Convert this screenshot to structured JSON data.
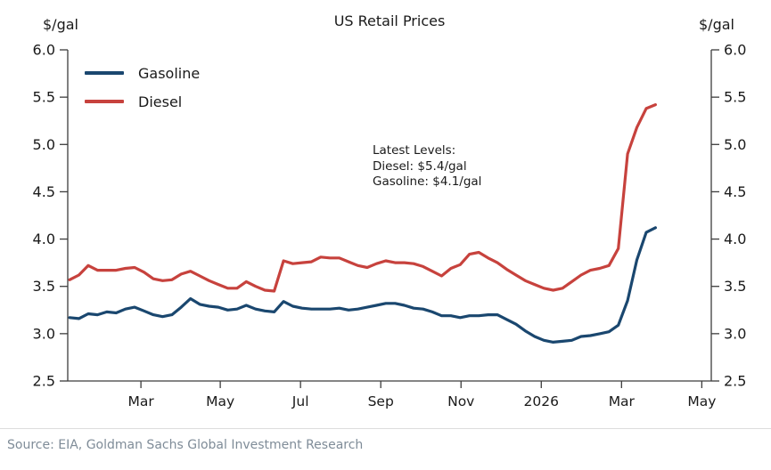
{
  "title": "US Retail Prices",
  "axis_units": {
    "left": "$/gal",
    "right": "$/gal"
  },
  "annotation": {
    "lines": [
      "Latest Levels:",
      "Diesel: $5.4/gal",
      "Gasoline: $4.1/gal"
    ]
  },
  "source": "Source: EIA, Goldman Sachs Global Investment Research",
  "chart_data": {
    "type": "line",
    "title": "US Retail Prices",
    "ylabel": "$/gal",
    "ylim": [
      2.5,
      6.0
    ],
    "yticks": [
      2.5,
      3.0,
      3.5,
      4.0,
      4.5,
      5.0,
      5.5,
      6.0
    ],
    "grid": false,
    "legend_position": "upper left",
    "x_description": "weekly observations, Jan 2025 through late Mar 2026",
    "x_domain": [
      -0.2,
      69.0
    ],
    "xticks": [
      {
        "x": 7.67,
        "label": "Mar"
      },
      {
        "x": 16.2,
        "label": "May"
      },
      {
        "x": 24.83,
        "label": "Jul"
      },
      {
        "x": 33.46,
        "label": "Sep"
      },
      {
        "x": 42.09,
        "label": "Nov"
      },
      {
        "x": 50.72,
        "label": "2026"
      },
      {
        "x": 59.35,
        "label": "Mar"
      },
      {
        "x": 67.98,
        "label": "May"
      }
    ],
    "series": [
      {
        "name": "Gasoline",
        "color": "#1a476f",
        "latest_label": "$4.1/gal",
        "values": [
          3.17,
          3.16,
          3.21,
          3.2,
          3.23,
          3.22,
          3.26,
          3.28,
          3.24,
          3.2,
          3.18,
          3.2,
          3.28,
          3.37,
          3.31,
          3.29,
          3.28,
          3.25,
          3.26,
          3.3,
          3.26,
          3.24,
          3.23,
          3.34,
          3.29,
          3.27,
          3.26,
          3.26,
          3.26,
          3.27,
          3.25,
          3.26,
          3.28,
          3.3,
          3.32,
          3.32,
          3.3,
          3.27,
          3.26,
          3.23,
          3.19,
          3.19,
          3.17,
          3.19,
          3.19,
          3.2,
          3.2,
          3.15,
          3.1,
          3.03,
          2.97,
          2.93,
          2.91,
          2.92,
          2.93,
          2.97,
          2.98,
          3.0,
          3.02,
          3.09,
          3.35,
          3.78,
          4.07,
          4.12
        ]
      },
      {
        "name": "Diesel",
        "color": "#c7423d",
        "latest_label": "$5.4/gal",
        "values": [
          3.57,
          3.62,
          3.72,
          3.67,
          3.67,
          3.67,
          3.69,
          3.7,
          3.65,
          3.58,
          3.56,
          3.57,
          3.63,
          3.66,
          3.61,
          3.56,
          3.52,
          3.48,
          3.48,
          3.55,
          3.5,
          3.46,
          3.45,
          3.77,
          3.74,
          3.75,
          3.76,
          3.81,
          3.8,
          3.8,
          3.76,
          3.72,
          3.7,
          3.74,
          3.77,
          3.75,
          3.75,
          3.74,
          3.71,
          3.66,
          3.61,
          3.69,
          3.73,
          3.84,
          3.86,
          3.8,
          3.75,
          3.68,
          3.62,
          3.56,
          3.52,
          3.48,
          3.46,
          3.48,
          3.55,
          3.62,
          3.67,
          3.69,
          3.72,
          3.9,
          4.9,
          5.18,
          5.38,
          5.42
        ]
      }
    ]
  }
}
